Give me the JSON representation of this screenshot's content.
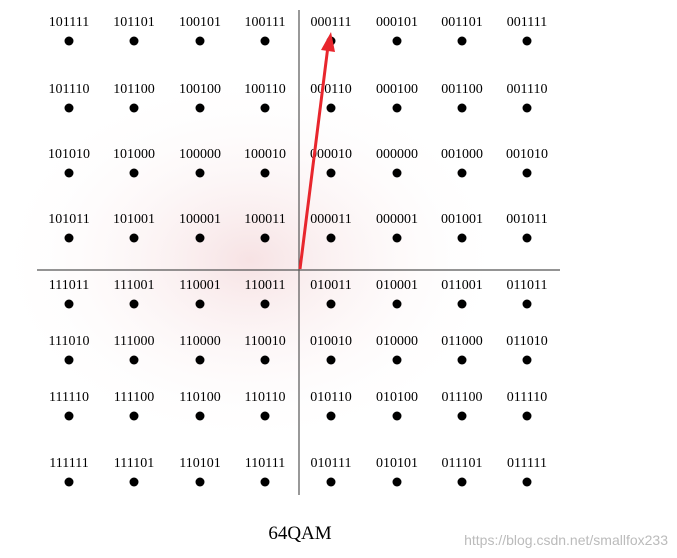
{
  "title": "64QAM",
  "watermark": "https://blog.csdn.net/smallfox233",
  "rows": [
    [
      "101111",
      "101101",
      "100101",
      "100111",
      "000111",
      "000101",
      "001101",
      "001111"
    ],
    [
      "101110",
      "101100",
      "100100",
      "100110",
      "000110",
      "000100",
      "001100",
      "001110"
    ],
    [
      "101010",
      "101000",
      "100000",
      "100010",
      "000010",
      "000000",
      "001000",
      "001010"
    ],
    [
      "101011",
      "101001",
      "100001",
      "100011",
      "000011",
      "000001",
      "001001",
      "001011"
    ],
    [
      "111011",
      "111001",
      "110001",
      "110011",
      "010011",
      "010001",
      "011001",
      "011011"
    ],
    [
      "111010",
      "111000",
      "110000",
      "110010",
      "010010",
      "010000",
      "011000",
      "011010"
    ],
    [
      "111110",
      "111100",
      "110100",
      "110110",
      "010110",
      "010100",
      "011100",
      "011110"
    ],
    [
      "111111",
      "111101",
      "110101",
      "110111",
      "010111",
      "010101",
      "011101",
      "011111"
    ]
  ]
}
